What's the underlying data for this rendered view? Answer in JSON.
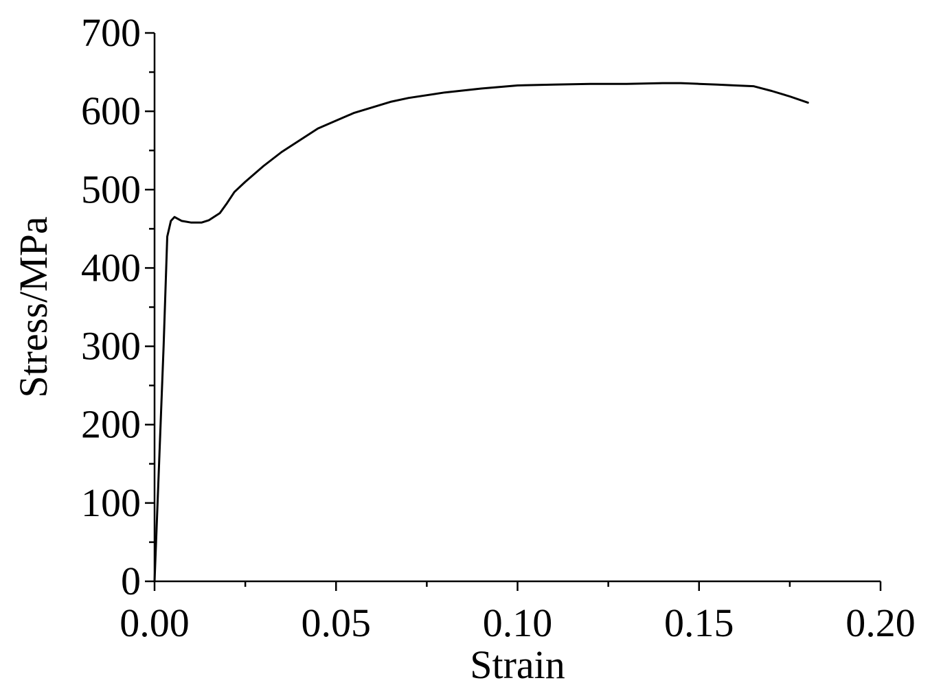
{
  "chart_data": {
    "type": "line",
    "title": "",
    "xlabel": "Strain",
    "ylabel": "Stress/MPa",
    "xlim": [
      0,
      0.2
    ],
    "ylim": [
      0,
      700
    ],
    "x_ticks": [
      0.0,
      0.05,
      0.1,
      0.15,
      0.2
    ],
    "x_tick_labels": [
      "0.00",
      "0.05",
      "0.10",
      "0.15",
      "0.20"
    ],
    "x_minor_step": 0.025,
    "y_ticks": [
      0,
      100,
      200,
      300,
      400,
      500,
      600,
      700
    ],
    "y_tick_labels": [
      "0",
      "100",
      "200",
      "300",
      "400",
      "500",
      "600",
      "700"
    ],
    "y_minor_step": 50,
    "grid": false,
    "legend": "none",
    "series": [
      {
        "color": "#000000",
        "x": [
          0.0,
          0.0025,
          0.0035,
          0.0045,
          0.0055,
          0.0075,
          0.01,
          0.013,
          0.015,
          0.018,
          0.02,
          0.022,
          0.025,
          0.03,
          0.035,
          0.04,
          0.045,
          0.05,
          0.055,
          0.06,
          0.065,
          0.07,
          0.08,
          0.09,
          0.1,
          0.11,
          0.12,
          0.13,
          0.14,
          0.145,
          0.15,
          0.155,
          0.16,
          0.165,
          0.17,
          0.175,
          0.18
        ],
        "y": [
          0,
          300,
          440,
          460,
          465,
          460,
          458,
          458,
          461,
          470,
          483,
          497,
          510,
          530,
          548,
          563,
          578,
          588,
          598,
          605,
          612,
          617,
          624,
          629,
          633,
          634,
          635,
          635,
          636,
          636,
          635,
          634,
          633,
          632,
          626,
          619,
          611
        ]
      }
    ]
  }
}
